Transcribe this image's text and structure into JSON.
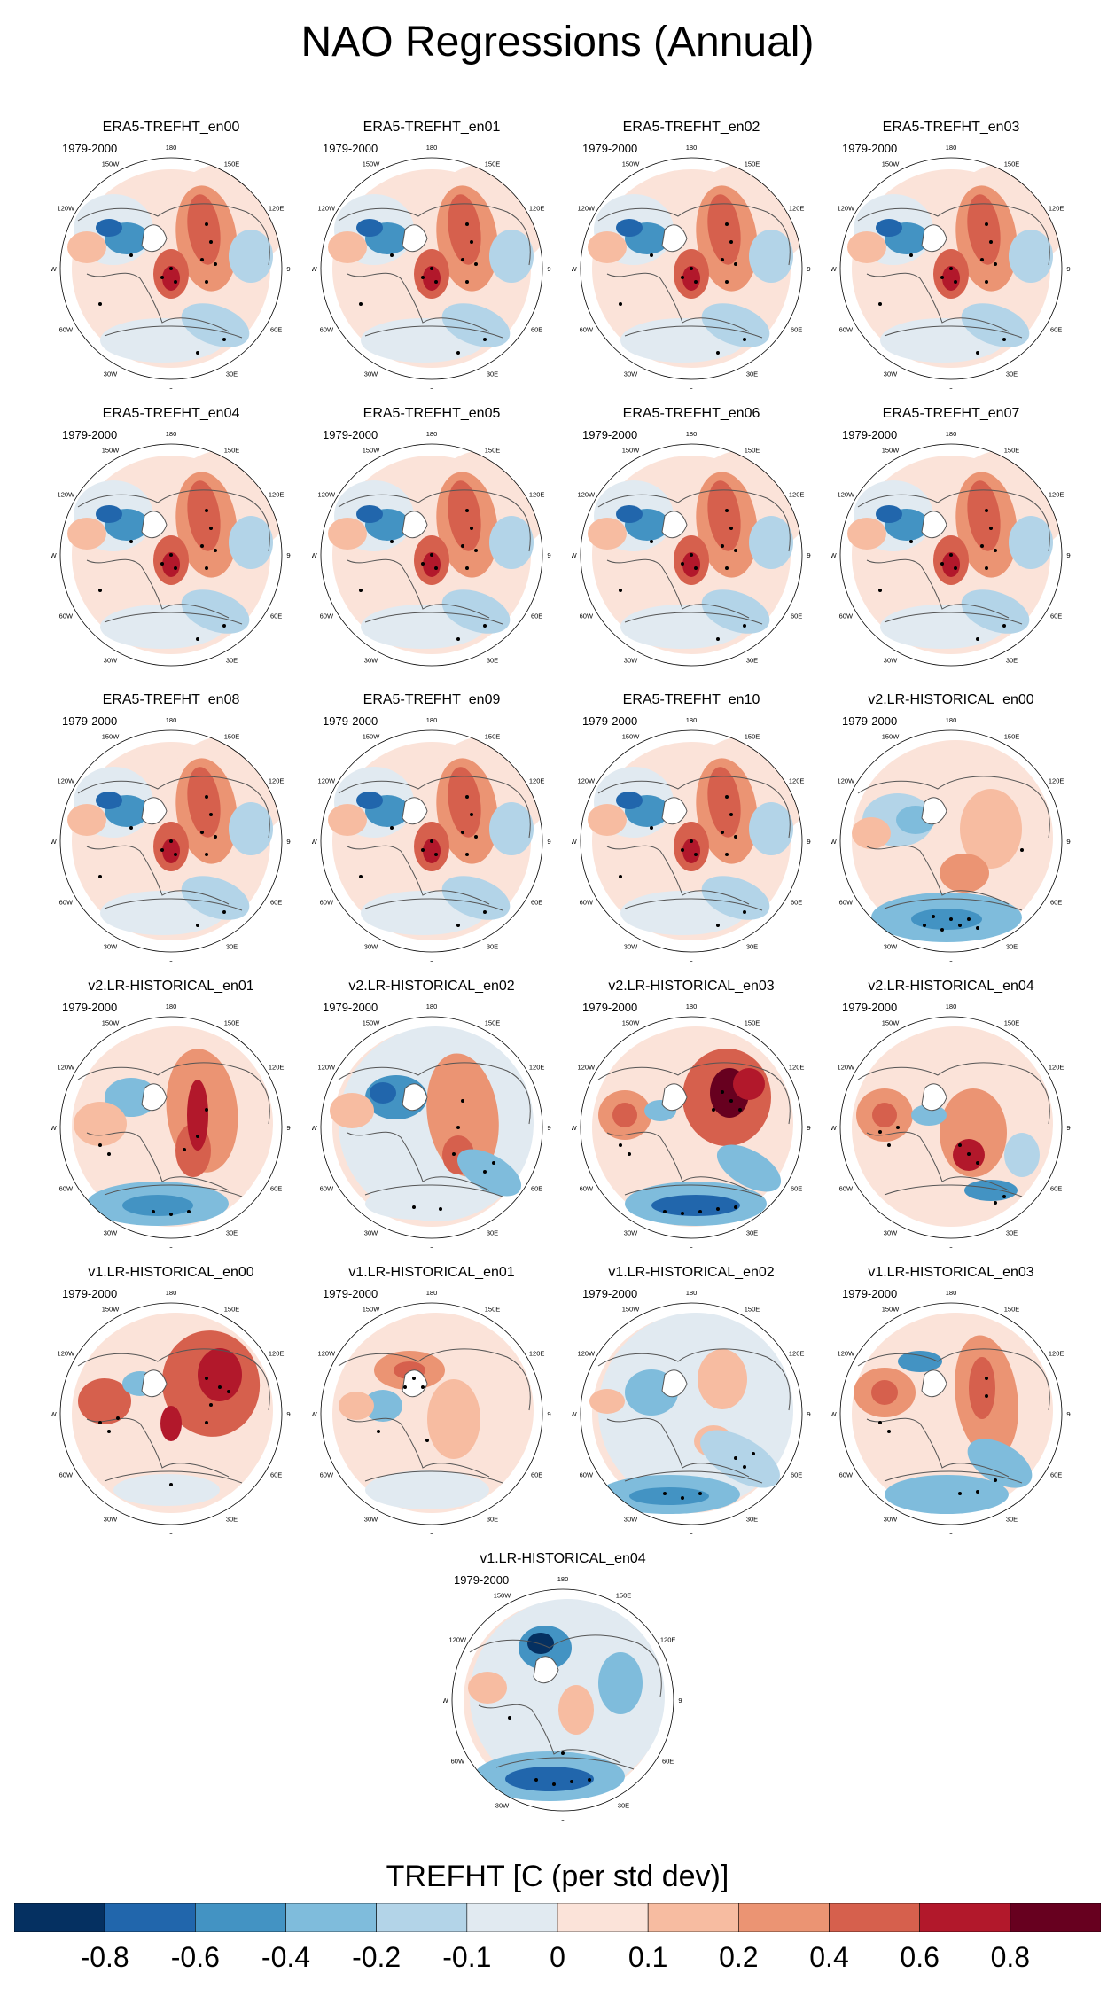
{
  "title": "NAO Regressions (Annual)",
  "period_label": "1979-2000",
  "panels": [
    {
      "title": "ERA5-TREFHT_en00",
      "pattern": "era5"
    },
    {
      "title": "ERA5-TREFHT_en01",
      "pattern": "era5"
    },
    {
      "title": "ERA5-TREFHT_en02",
      "pattern": "era5"
    },
    {
      "title": "ERA5-TREFHT_en03",
      "pattern": "era5"
    },
    {
      "title": "ERA5-TREFHT_en04",
      "pattern": "era5"
    },
    {
      "title": "ERA5-TREFHT_en05",
      "pattern": "era5"
    },
    {
      "title": "ERA5-TREFHT_en06",
      "pattern": "era5"
    },
    {
      "title": "ERA5-TREFHT_en07",
      "pattern": "era5"
    },
    {
      "title": "ERA5-TREFHT_en08",
      "pattern": "era5"
    },
    {
      "title": "ERA5-TREFHT_en09",
      "pattern": "era5"
    },
    {
      "title": "ERA5-TREFHT_en10",
      "pattern": "era5"
    },
    {
      "title": "v2.LR-HISTORICAL_en00",
      "pattern": "v2a"
    },
    {
      "title": "v2.LR-HISTORICAL_en01",
      "pattern": "v2b"
    },
    {
      "title": "v2.LR-HISTORICAL_en02",
      "pattern": "v2c"
    },
    {
      "title": "v2.LR-HISTORICAL_en03",
      "pattern": "v2d"
    },
    {
      "title": "v2.LR-HISTORICAL_en04",
      "pattern": "v2e"
    },
    {
      "title": "v1.LR-HISTORICAL_en00",
      "pattern": "v1a"
    },
    {
      "title": "v1.LR-HISTORICAL_en01",
      "pattern": "v1b"
    },
    {
      "title": "v1.LR-HISTORICAL_en02",
      "pattern": "v1c"
    },
    {
      "title": "v1.LR-HISTORICAL_en03",
      "pattern": "v1d"
    },
    {
      "title": "v1.LR-HISTORICAL_en04",
      "pattern": "v1e"
    }
  ],
  "longitude_labels": [
    "180",
    "150E",
    "120E",
    "90E",
    "60E",
    "30E",
    "0",
    "30W",
    "60W",
    "90W",
    "120W",
    "150W"
  ],
  "colorbar": {
    "title": "TREFHT [C (per std dev)]",
    "colors": [
      "#053061",
      "#2166ac",
      "#4393c3",
      "#7fbcdc",
      "#b3d4e8",
      "#e1eaf1",
      "#fbe3d9",
      "#f7bca1",
      "#eb9473",
      "#d6604d",
      "#b2182b",
      "#67001f"
    ],
    "ticks": [
      "-0.8",
      "-0.6",
      "-0.4",
      "-0.2",
      "-0.1",
      "0",
      "0.1",
      "0.2",
      "0.4",
      "0.6",
      "0.8"
    ]
  }
}
